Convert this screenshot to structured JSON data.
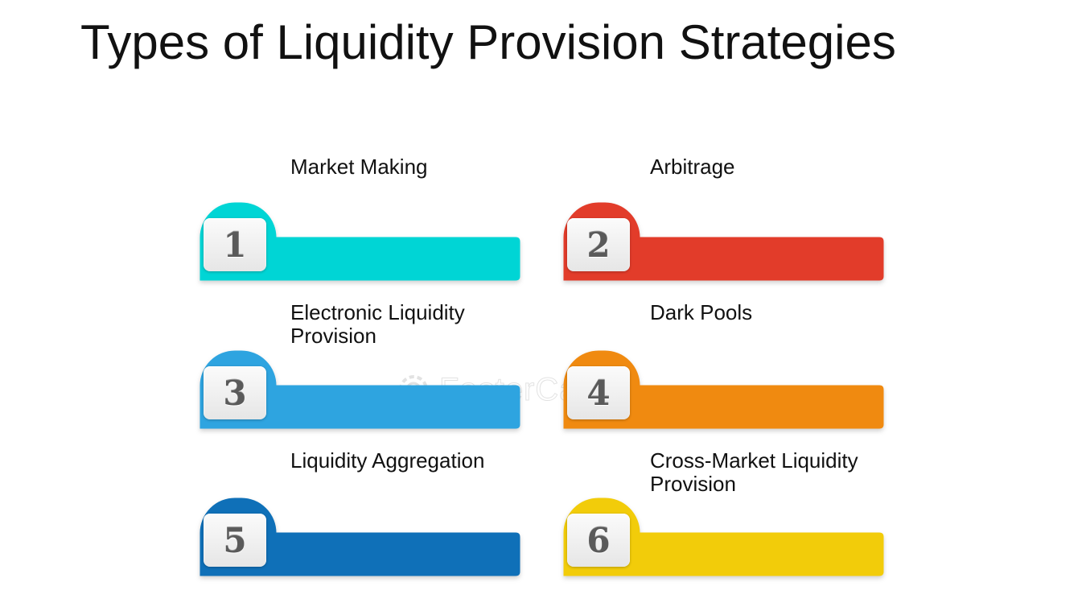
{
  "title": "Types of Liquidity Provision Strategies",
  "watermark": "FasterCapital",
  "items": [
    {
      "number": "1",
      "label": "Market Making",
      "color": "#00d5d5"
    },
    {
      "number": "2",
      "label": "Arbitrage",
      "color": "#e23c2a"
    },
    {
      "number": "3",
      "label": "Electronic Liquidity Provision",
      "color": "#2ea4e0"
    },
    {
      "number": "4",
      "label": "Dark Pools",
      "color": "#f08a10"
    },
    {
      "number": "5",
      "label": "Liquidity Aggregation",
      "color": "#0f70b8"
    },
    {
      "number": "6",
      "label": "Cross-Market Liquidity Provision",
      "color": "#f2cc0a"
    }
  ]
}
